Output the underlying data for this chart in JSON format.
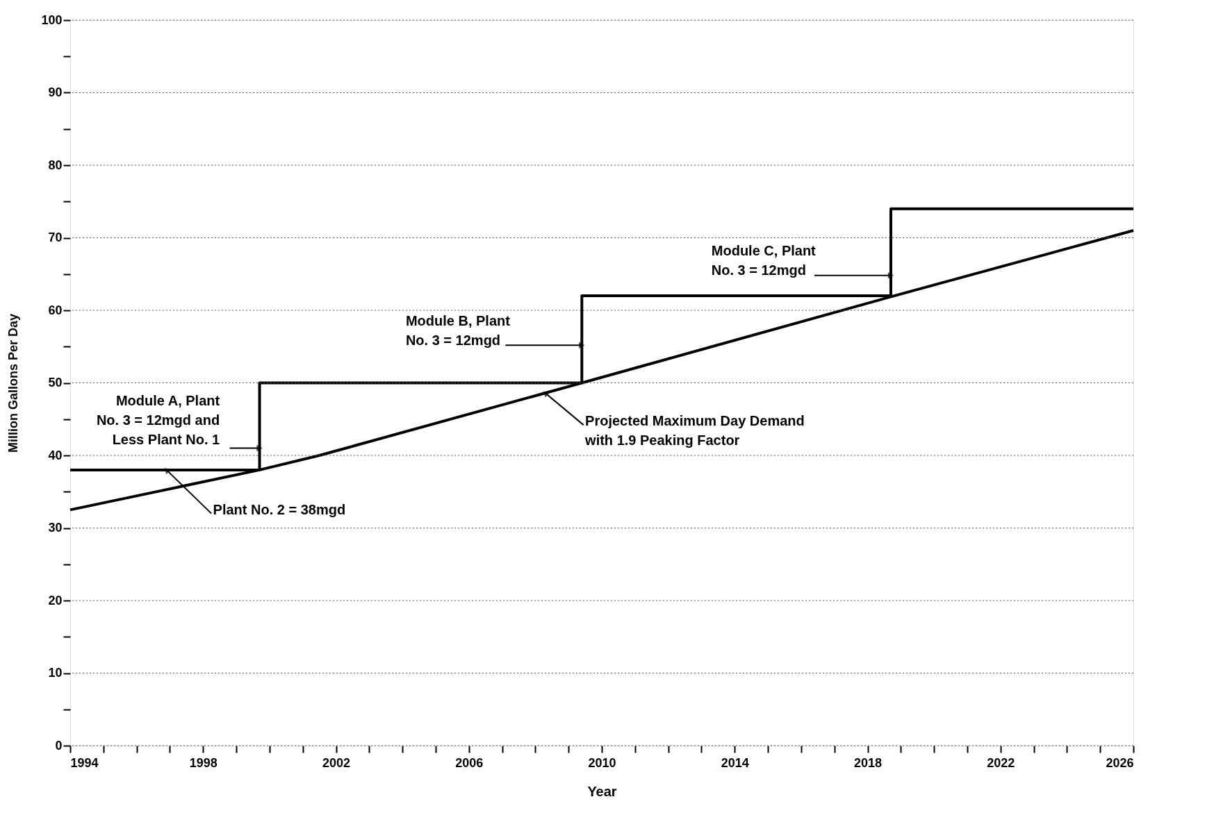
{
  "chart_data": {
    "type": "line",
    "xlabel": "Year",
    "ylabel": "Million Gallons Per Day",
    "series": [
      {
        "color": "#000000",
        "x": [
          1994,
          1999.7,
          2001.5,
          2009.4,
          2018.8,
          2026
        ],
        "values": [
          32.5,
          38,
          40,
          50,
          62,
          71
        ]
      },
      {
        "type": "step",
        "color": "#000000",
        "x": [
          1994,
          1999.7,
          2009.4,
          2018.7,
          2026
        ],
        "values": [
          38,
          50,
          62,
          74,
          74
        ]
      }
    ],
    "xlim": [
      1994,
      2026
    ],
    "ylim": [
      0,
      100
    ],
    "xticks": [
      1994,
      {
        "value": 1995,
        "label": null
      },
      {
        "value": 1996,
        "label": null
      },
      {
        "value": 1997,
        "label": null
      },
      1998,
      {
        "value": 1999,
        "label": null
      },
      {
        "value": 2000,
        "label": null
      },
      {
        "value": 2001,
        "label": null
      },
      2002,
      {
        "value": 2003,
        "label": null
      },
      {
        "value": 2004,
        "label": null
      },
      {
        "value": 2005,
        "label": null
      },
      2006,
      {
        "value": 2007,
        "label": null
      },
      {
        "value": 2008,
        "label": null
      },
      {
        "value": 2009,
        "label": null
      },
      2010,
      {
        "value": 2011,
        "label": null
      },
      {
        "value": 2012,
        "label": null
      },
      {
        "value": 2013,
        "label": null
      },
      2014,
      {
        "value": 2015,
        "label": null
      },
      {
        "value": 2016,
        "label": null
      },
      {
        "value": 2017,
        "label": null
      },
      2018,
      {
        "value": 2019,
        "label": null
      },
      {
        "value": 2020,
        "label": null
      },
      {
        "value": 2021,
        "label": null
      },
      2022,
      {
        "value": 2023,
        "label": null
      },
      {
        "value": 2024,
        "label": null
      },
      {
        "value": 2025,
        "label": null
      },
      2026
    ],
    "yticks": [
      0,
      {
        "value": 5,
        "label": null
      },
      10,
      {
        "value": 15,
        "label": null
      },
      20,
      {
        "value": 25,
        "label": null
      },
      30,
      {
        "value": 35,
        "label": null
      },
      40,
      {
        "value": 45,
        "label": null
      },
      50,
      {
        "value": 55,
        "label": null
      },
      60,
      {
        "value": 65,
        "label": null
      },
      70,
      {
        "value": 75,
        "label": null
      },
      80,
      {
        "value": 85,
        "label": null
      },
      90,
      {
        "value": 95,
        "label": null
      },
      100
    ],
    "grid": "y",
    "line_style": "solid",
    "marker": "none",
    "annotations": [
      {
        "text": "Module A, Plant\nNo. 3 = 12mgd and\nLess Plant No. 1",
        "x": 1999.7,
        "y": 41
      },
      {
        "text": "Module B, Plant\nNo. 3 = 12mgd",
        "x": 2009.4,
        "y": 55.2
      },
      {
        "text": "Module C, Plant\nNo. 3 = 12mgd",
        "x": 2018.7,
        "y": 64.8
      },
      {
        "text": "Projected Maximum Day Demand\nwith 1.9 Peaking Factor",
        "x": 2008.3,
        "y": 48.6
      },
      {
        "text": "Plant No. 2 = 38mgd",
        "x": 1996.9,
        "y": 38
      }
    ]
  }
}
